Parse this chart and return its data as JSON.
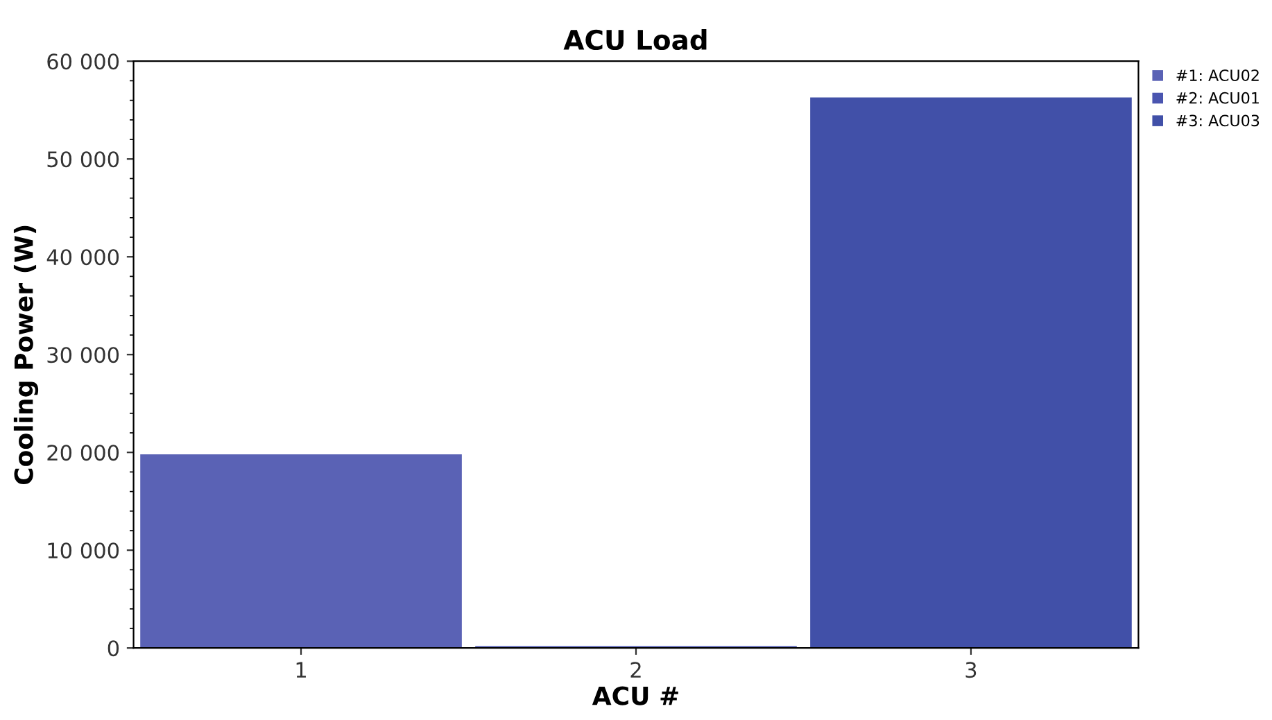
{
  "chart_data": {
    "type": "bar",
    "title": "ACU Load",
    "xlabel": "ACU #",
    "ylabel": "Cooling Power (W)",
    "categories": [
      "1",
      "2",
      "3"
    ],
    "series": [
      {
        "name": "#1: ACU02",
        "color": "#5a62b5",
        "values": [
          19800,
          null,
          null
        ]
      },
      {
        "name": "#2: ACU01",
        "color": "#4a55b0",
        "values": [
          null,
          200,
          null
        ]
      },
      {
        "name": "#3: ACU03",
        "color": "#4150a8",
        "values": [
          null,
          null,
          56300
        ]
      }
    ],
    "ylim": [
      0,
      60000
    ],
    "yticks": [
      {
        "value": 0,
        "label": "0"
      },
      {
        "value": 10000,
        "label": "10 000"
      },
      {
        "value": 20000,
        "label": "20 000"
      },
      {
        "value": 30000,
        "label": "30 000"
      },
      {
        "value": 40000,
        "label": "40 000"
      },
      {
        "value": 50000,
        "label": "50 000"
      },
      {
        "value": 60000,
        "label": "60 000"
      }
    ],
    "grid": false,
    "legend": "top right"
  }
}
